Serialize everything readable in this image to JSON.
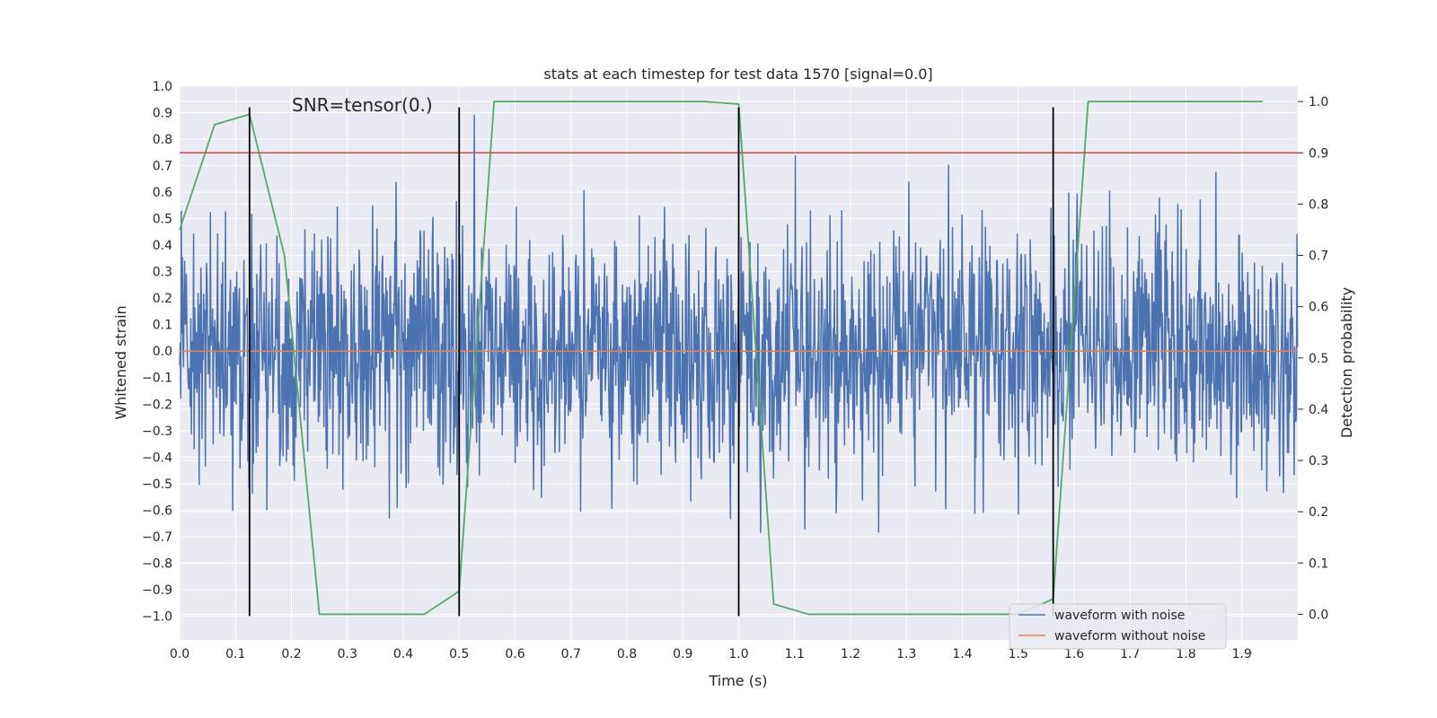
{
  "chart_data": {
    "type": "line",
    "title": "stats at each timestep for test data 1570 [signal=0.0]",
    "xlabel": "Time (s)",
    "ylabel": "Whitened strain",
    "y2label": "Detection probability",
    "annotation": "SNR=tensor(0.)",
    "xlim": [
      0.0,
      2.0
    ],
    "ylim": [
      -1.09,
      1.0
    ],
    "y2lim": [
      -0.05,
      1.03
    ],
    "x_ticks": [
      0.0,
      0.1,
      0.2,
      0.3,
      0.4,
      0.5,
      0.6,
      0.7,
      0.8,
      0.9,
      1.0,
      1.1,
      1.2,
      1.3,
      1.4,
      1.5,
      1.6,
      1.7,
      1.8,
      1.9
    ],
    "y_ticks": [
      -1.0,
      -0.9,
      -0.8,
      -0.7,
      -0.6,
      -0.5,
      -0.4,
      -0.3,
      -0.2,
      -0.1,
      0.0,
      0.1,
      0.2,
      0.3,
      0.4,
      0.5,
      0.6,
      0.7,
      0.8,
      0.9,
      1.0
    ],
    "y2_ticks": [
      0.0,
      0.1,
      0.2,
      0.3,
      0.4,
      0.5,
      0.6,
      0.7,
      0.8,
      0.9,
      1.0
    ],
    "grid": true,
    "legend_position": "lower-right",
    "colors": {
      "background": "#eaeaf2",
      "grid": "#ffffff",
      "noisy": "#4c72b0",
      "clean": "#dd8452",
      "probability": "#55a868",
      "threshold": "#c44e52",
      "markers": "#000000"
    },
    "series": [
      {
        "name": "waveform with noise",
        "axis": "left",
        "x_start": 0.0,
        "x_end": 1.9995,
        "samples": 2000,
        "amplitude_sigma": 0.23,
        "clip": [
          -1.0,
          0.92
        ]
      },
      {
        "name": "waveform without noise",
        "axis": "left",
        "x": [
          0.0,
          2.0
        ],
        "y": [
          0.0,
          0.0
        ]
      },
      {
        "axis": "right",
        "x": [
          0.0,
          0.0625,
          0.125,
          0.1875,
          0.25,
          0.3125,
          0.375,
          0.4375,
          0.5,
          0.5625,
          0.625,
          0.6875,
          0.75,
          0.8125,
          0.875,
          0.9375,
          1.0,
          1.0625,
          1.125,
          1.1875,
          1.25,
          1.3125,
          1.375,
          1.4375,
          1.5,
          1.5625,
          1.625,
          1.6875,
          1.75,
          1.8125,
          1.875,
          1.9375
        ],
        "y": [
          0.75,
          0.955,
          0.975,
          0.7,
          0.0,
          0.0,
          0.0,
          0.0,
          0.045,
          1.0,
          1.0,
          1.0,
          1.0,
          1.0,
          1.0,
          1.0,
          0.995,
          0.02,
          0.0,
          0.0,
          0.0,
          0.0,
          0.0,
          0.0,
          0.0,
          0.03,
          1.0,
          1.0,
          1.0,
          1.0,
          1.0,
          1.0
        ]
      },
      {
        "axis": "right",
        "x": [
          0.0,
          2.0
        ],
        "y": [
          0.9,
          0.9
        ]
      }
    ],
    "vertical_markers": {
      "x": [
        0.125,
        0.5,
        1.0,
        1.5625
      ],
      "y_range": [
        -1.0,
        0.92
      ]
    }
  }
}
